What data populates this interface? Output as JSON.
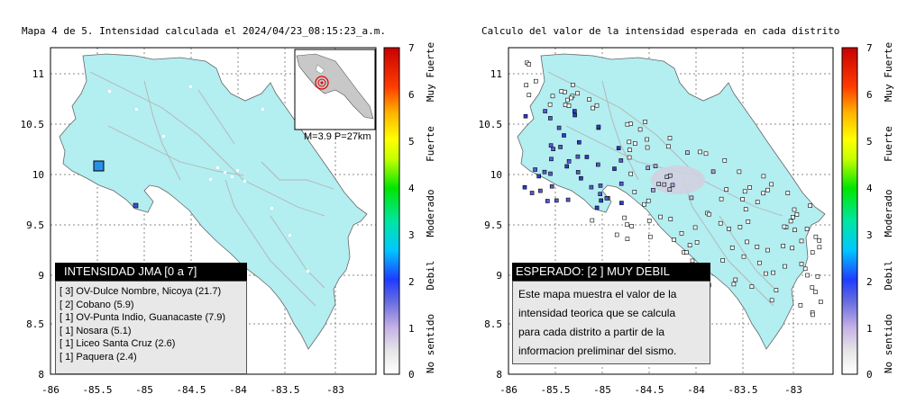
{
  "left_panel": {
    "title": "Mapa 4 de 5. Intensidad calculada el 2024/04/23_08:15:23_a.m.",
    "x_ticks": [
      "-86",
      "-85.5",
      "-85",
      "-84.5",
      "-84",
      "-83.5",
      "-83"
    ],
    "y_ticks": [
      "11",
      "10.5",
      "10",
      "9.5",
      "9",
      "8.5",
      "8"
    ],
    "inset_label": "M=3.9 P=27km",
    "legend": {
      "title": "INTENSIDAD JMA [0 a 7]",
      "rows": [
        {
          "value": "[ 3]",
          "label": "OV-Dulce Nombre, Nicoya (21.7)"
        },
        {
          "value": "[ 2]",
          "label": "Cobano (5.9)"
        },
        {
          "value": "[ 1]",
          "label": "OV-Punta Indio, Guanacaste (7.9)"
        },
        {
          "value": "[ 1]",
          "label": "Nosara (5.1)"
        },
        {
          "value": "[ 1]",
          "label": "Liceo Santa Cruz (2.6)"
        },
        {
          "value": "[ 1]",
          "label": "Paquera (2.4)"
        }
      ]
    }
  },
  "right_panel": {
    "title": "Calculo del valor de la intensidad esperada en cada distrito",
    "x_ticks": [
      "-86",
      "-85.5",
      "-85",
      "-84.5",
      "-84",
      "-83.5",
      "-83"
    ],
    "y_ticks": [
      "11",
      "10.5",
      "10",
      "9.5",
      "9",
      "8.5",
      "8"
    ],
    "legend": {
      "title": "ESPERADO: [2 ] MUY DEBIL",
      "lines": [
        "Este mapa muestra el valor de la",
        "intensidad teorica que se calcula",
        "para cada distrito a partir de la",
        "informacion preliminar del sismo."
      ]
    }
  },
  "colorbar": {
    "ticks": [
      "7",
      "6",
      "5",
      "4",
      "3",
      "2",
      "1",
      "0"
    ],
    "labels": [
      "Muy Fuerte",
      "Fuerte",
      "Moderado",
      "Debil",
      "No sentido"
    ]
  },
  "colors": {
    "land": "#b3eef0",
    "sea": "#ffffff",
    "roads": "#b4b4b4",
    "grid": "#888888"
  }
}
